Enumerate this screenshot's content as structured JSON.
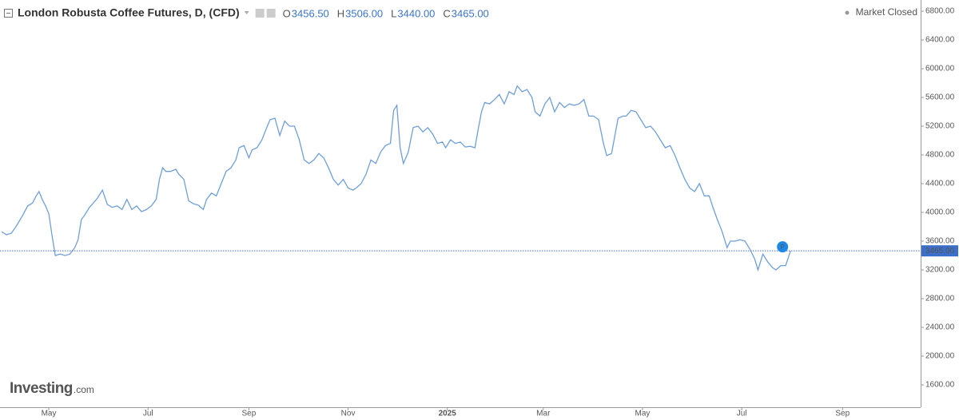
{
  "chart_data": {
    "type": "line",
    "title": "London Robusta Coffee Futures, D, (CFD)",
    "ohlc": [
      {
        "name": "O",
        "value": "3456.50"
      },
      {
        "name": "H",
        "value": "3506.00"
      },
      {
        "name": "L",
        "value": "3440.00"
      },
      {
        "name": "C",
        "value": "3465.00"
      }
    ],
    "status": "Market Closed",
    "marker": "P",
    "brand": "Investing",
    "brand_suffix": ".com",
    "color": "#6f9fd8",
    "last_price": {
      "value": 3465,
      "label": "3465.00"
    },
    "xlim": [
      0,
      566
    ],
    "xticks": [
      {
        "value": 30,
        "label": "May"
      },
      {
        "value": 91,
        "label": "Jul"
      },
      {
        "value": 153,
        "label": "Sep"
      },
      {
        "value": 214,
        "label": "Nov"
      },
      {
        "value": 275,
        "label": "2025"
      },
      {
        "value": 334,
        "label": "Mar"
      },
      {
        "value": 395,
        "label": "May"
      },
      {
        "value": 456,
        "label": "Jul"
      },
      {
        "value": 518,
        "label": "Sep"
      }
    ],
    "ylim": [
      1289,
      6956
    ],
    "yticks": [
      {
        "value": 1600,
        "label": "1600.00"
      },
      {
        "value": 2000,
        "label": "2000.00"
      },
      {
        "value": 2400,
        "label": "2400.00"
      },
      {
        "value": 2800,
        "label": "2800.00"
      },
      {
        "value": 3200,
        "label": "3200.00"
      },
      {
        "value": 3600,
        "label": "3600.00"
      },
      {
        "value": 4000,
        "label": "4000.00"
      },
      {
        "value": 4400,
        "label": "4400.00"
      },
      {
        "value": 4800,
        "label": "4800.00"
      },
      {
        "value": 5200,
        "label": "5200.00"
      },
      {
        "value": 5600,
        "label": "5600.00"
      },
      {
        "value": 6000,
        "label": "6000.00"
      },
      {
        "value": 6400,
        "label": "6400.00"
      },
      {
        "value": 6800,
        "label": "6800.00"
      }
    ],
    "x": [
      1,
      4,
      7,
      10,
      14,
      17,
      20,
      22,
      24,
      26,
      28,
      30,
      32,
      34,
      37,
      40,
      43,
      46,
      48,
      50,
      52,
      55,
      57,
      60,
      63,
      66,
      69,
      72,
      75,
      78,
      81,
      84,
      87,
      90,
      93,
      96,
      98,
      100,
      102,
      105,
      108,
      110,
      113,
      116,
      119,
      122,
      125,
      127,
      130,
      133,
      136,
      139,
      142,
      145,
      147,
      150,
      153,
      155,
      158,
      161,
      164,
      166,
      169,
      172,
      175,
      178,
      181,
      184,
      187,
      190,
      193,
      196,
      199,
      202,
      205,
      208,
      211,
      214,
      217,
      219,
      222,
      225,
      228,
      231,
      234,
      237,
      240,
      242,
      244,
      246,
      248,
      251,
      254,
      257,
      260,
      263,
      266,
      269,
      272,
      274,
      277,
      280,
      283,
      286,
      289,
      292,
      294,
      296,
      298,
      301,
      304,
      307,
      310,
      313,
      316,
      318,
      321,
      324,
      327,
      329,
      332,
      335,
      338,
      341,
      344,
      347,
      350,
      353,
      356,
      359,
      362,
      365,
      368,
      371,
      373,
      376,
      378,
      380,
      383,
      385,
      388,
      391,
      394,
      397,
      400,
      403,
      406,
      409,
      412,
      415,
      418,
      421,
      424,
      427,
      430,
      433,
      436,
      438,
      441,
      444,
      447,
      449,
      452,
      455,
      458,
      461,
      464,
      466,
      469,
      472,
      475,
      477,
      480,
      483,
      486
    ],
    "values": [
      3730,
      3690,
      3710,
      3810,
      3960,
      4090,
      4130,
      4220,
      4290,
      4180,
      4090,
      3980,
      3680,
      3400,
      3420,
      3400,
      3420,
      3510,
      3620,
      3900,
      3960,
      4070,
      4120,
      4200,
      4310,
      4110,
      4070,
      4090,
      4040,
      4180,
      4040,
      4090,
      4010,
      4040,
      4090,
      4180,
      4460,
      4620,
      4570,
      4570,
      4600,
      4530,
      4460,
      4160,
      4120,
      4100,
      4040,
      4180,
      4270,
      4230,
      4400,
      4570,
      4620,
      4730,
      4900,
      4930,
      4760,
      4870,
      4900,
      5010,
      5180,
      5290,
      5310,
      5070,
      5270,
      5200,
      5200,
      5010,
      4730,
      4680,
      4730,
      4820,
      4760,
      4620,
      4460,
      4380,
      4460,
      4340,
      4310,
      4340,
      4400,
      4530,
      4730,
      4680,
      4840,
      4930,
      4960,
      5420,
      5490,
      4900,
      4680,
      4840,
      5180,
      5200,
      5120,
      5180,
      5090,
      4960,
      4980,
      4900,
      5010,
      4960,
      4980,
      4910,
      4920,
      4900,
      5160,
      5400,
      5530,
      5510,
      5570,
      5640,
      5510,
      5680,
      5640,
      5760,
      5680,
      5710,
      5600,
      5400,
      5340,
      5510,
      5600,
      5400,
      5530,
      5460,
      5510,
      5490,
      5510,
      5570,
      5340,
      5340,
      5290,
      4960,
      4790,
      4820,
      5070,
      5310,
      5340,
      5340,
      5420,
      5400,
      5290,
      5180,
      5200,
      5120,
      5010,
      4900,
      4930,
      4790,
      4620,
      4460,
      4340,
      4290,
      4400,
      4230,
      4230,
      4090,
      3900,
      3730,
      3510,
      3600,
      3600,
      3620,
      3600,
      3490,
      3350,
      3200,
      3420,
      3310,
      3230,
      3200,
      3260,
      3260,
      3465
    ]
  }
}
